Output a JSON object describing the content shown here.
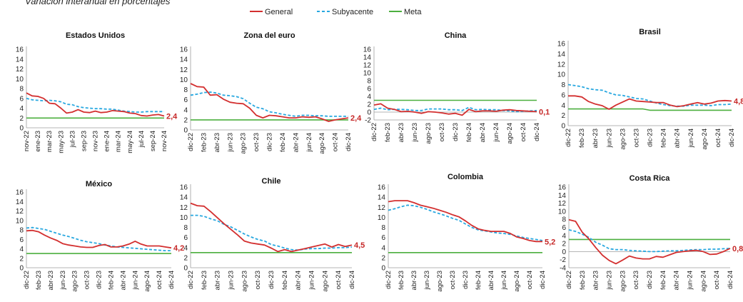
{
  "subtitle": "Variación interanual en porcentajes",
  "legend": [
    {
      "name": "General",
      "color": "#d32f2f",
      "style": "solid"
    },
    {
      "name": "Subyacente",
      "color": "#29a8e0",
      "style": "dashed"
    },
    {
      "name": "Meta",
      "color": "#4caf3f",
      "style": "solid"
    }
  ],
  "chart_data": [
    {
      "type": "line",
      "title": "Estados Unidos",
      "ylim": [
        0,
        16
      ],
      "yticks": [
        0,
        2,
        4,
        6,
        8,
        10,
        12,
        14,
        16
      ],
      "x_labels": [
        "nov-22",
        "ene-23",
        "mar-23",
        "may-23",
        "jul-23",
        "sep-23",
        "nov-23",
        "ene-24",
        "mar-24",
        "may-24",
        "jul-24",
        "sep-24",
        "nov-24"
      ],
      "series": [
        {
          "name": "General",
          "values": [
            7.1,
            6.5,
            6.4,
            6.0,
            5.0,
            4.9,
            4.0,
            3.0,
            3.2,
            3.7,
            3.2,
            3.1,
            3.4,
            3.1,
            3.2,
            3.5,
            3.4,
            3.3,
            3.0,
            2.9,
            2.5,
            2.4,
            2.6,
            2.7,
            2.4
          ]
        },
        {
          "name": "Subyacente",
          "values": [
            6.0,
            5.7,
            5.6,
            5.5,
            5.6,
            5.5,
            5.3,
            4.8,
            4.7,
            4.3,
            4.1,
            4.0,
            3.9,
            3.9,
            3.8,
            3.8,
            3.6,
            3.4,
            3.3,
            3.2,
            3.2,
            3.3,
            3.3,
            3.3,
            3.3
          ]
        },
        {
          "name": "Meta",
          "values": [
            2,
            2,
            2,
            2,
            2,
            2,
            2,
            2,
            2,
            2,
            2,
            2,
            2,
            2,
            2,
            2,
            2,
            2,
            2,
            2,
            2,
            2,
            2,
            2,
            2
          ]
        }
      ],
      "end_label": "2,4"
    },
    {
      "type": "line",
      "title": "Zona del euro",
      "ylim": [
        0,
        16
      ],
      "yticks": [
        0,
        2,
        4,
        6,
        8,
        10,
        12,
        14,
        16
      ],
      "x_labels": [
        "dic-22",
        "feb-23",
        "abr-23",
        "jun-23",
        "ago-23",
        "oct-23",
        "dic-23",
        "feb-24",
        "abr-24",
        "jun-24",
        "ago-24",
        "oct-24",
        "dic-24"
      ],
      "series": [
        {
          "name": "General",
          "values": [
            9.2,
            8.6,
            8.5,
            6.9,
            7.0,
            6.1,
            5.5,
            5.3,
            5.2,
            4.3,
            2.9,
            2.4,
            2.9,
            2.8,
            2.6,
            2.4,
            2.4,
            2.6,
            2.5,
            2.6,
            2.2,
            1.7,
            2.0,
            2.2,
            2.4
          ]
        },
        {
          "name": "Subyacente",
          "values": [
            6.9,
            7.1,
            7.4,
            7.5,
            7.3,
            6.9,
            6.8,
            6.6,
            6.2,
            5.3,
            4.5,
            4.2,
            3.6,
            3.4,
            3.1,
            2.9,
            2.7,
            2.9,
            2.9,
            2.8,
            2.8,
            2.7,
            2.7,
            2.7,
            2.7
          ]
        },
        {
          "name": "Meta",
          "values": [
            2,
            2,
            2,
            2,
            2,
            2,
            2,
            2,
            2,
            2,
            2,
            2,
            2,
            2,
            2,
            2,
            2,
            2,
            2,
            2,
            2,
            2,
            2,
            2,
            2
          ]
        }
      ],
      "end_label": "2,4"
    },
    {
      "type": "line",
      "title": "China",
      "ylim": [
        -2,
        16
      ],
      "yticks": [
        -2,
        0,
        2,
        4,
        6,
        8,
        10,
        12,
        14,
        16
      ],
      "x_labels": [
        "dic-22",
        "feb-23",
        "abr-23",
        "jun-23",
        "ago-23",
        "oct-23",
        "dic-23",
        "feb-24",
        "abr-24",
        "jun-24",
        "ago-24",
        "oct-24",
        "dic-24"
      ],
      "series": [
        {
          "name": "General",
          "values": [
            1.8,
            2.1,
            1.0,
            0.7,
            0.1,
            0.2,
            0.0,
            -0.3,
            0.1,
            0.0,
            -0.2,
            -0.5,
            -0.3,
            -0.8,
            0.7,
            0.1,
            0.3,
            0.3,
            0.2,
            0.5,
            0.6,
            0.4,
            0.3,
            0.2,
            0.1
          ]
        },
        {
          "name": "Subyacente",
          "values": [
            0.7,
            1.0,
            0.6,
            0.7,
            0.7,
            0.6,
            0.4,
            0.4,
            0.8,
            0.8,
            0.8,
            0.6,
            0.6,
            0.4,
            1.2,
            0.6,
            0.7,
            0.6,
            0.6,
            0.4,
            0.3,
            0.1,
            0.2,
            0.3,
            0.4
          ]
        },
        {
          "name": "Meta",
          "values": [
            3,
            3,
            3,
            3,
            3,
            3,
            3,
            3,
            3,
            3,
            3,
            3,
            3,
            3,
            3,
            3,
            3,
            3,
            3,
            3,
            3,
            3,
            3,
            3,
            3
          ]
        }
      ],
      "end_label": "0,1"
    },
    {
      "type": "line",
      "title": "Brasil",
      "ylim": [
        0,
        16
      ],
      "yticks": [
        0,
        2,
        4,
        6,
        8,
        10,
        12,
        14,
        16
      ],
      "x_labels": [
        "dic-22",
        "feb-23",
        "abr-23",
        "jun-23",
        "ago-23",
        "oct-23",
        "dic-23",
        "feb-24",
        "abr-24",
        "jun-24",
        "ago-24",
        "oct-24",
        "dic-24"
      ],
      "series": [
        {
          "name": "General",
          "values": [
            5.8,
            5.8,
            5.6,
            4.7,
            4.2,
            3.9,
            3.2,
            4.0,
            4.6,
            5.2,
            4.8,
            4.7,
            4.6,
            4.5,
            4.5,
            4.0,
            3.7,
            3.9,
            4.2,
            4.5,
            4.2,
            4.4,
            4.8,
            4.9,
            4.8
          ]
        },
        {
          "name": "Subyacente",
          "values": [
            8.0,
            7.8,
            7.6,
            7.2,
            7.0,
            6.9,
            6.4,
            6.0,
            5.9,
            5.6,
            5.3,
            5.2,
            4.8,
            4.4,
            4.1,
            3.9,
            3.8,
            3.8,
            4.0,
            4.0,
            4.0,
            3.9,
            4.1,
            4.1,
            4.2
          ]
        },
        {
          "name": "Meta",
          "values": [
            3.25,
            3.25,
            3.25,
            3.25,
            3.25,
            3.25,
            3.25,
            3.25,
            3.25,
            3.25,
            3.25,
            3.25,
            3.0,
            3.0,
            3.0,
            3.0,
            3.0,
            3.0,
            3.0,
            3.0,
            3.0,
            3.0,
            3.0,
            3.0,
            3.0
          ]
        }
      ],
      "end_label": "4,8"
    },
    {
      "type": "line",
      "title": "México",
      "ylim": [
        0,
        16
      ],
      "yticks": [
        0,
        2,
        4,
        6,
        8,
        10,
        12,
        14,
        16
      ],
      "x_labels": [
        "dic-22",
        "feb-23",
        "abr-23",
        "jun-23",
        "ago-23",
        "oct-23",
        "dic-23",
        "feb-24",
        "abr-24",
        "jun-24",
        "ago-24",
        "oct-24",
        "dic-24"
      ],
      "series": [
        {
          "name": "General",
          "values": [
            7.8,
            7.9,
            7.6,
            6.9,
            6.3,
            5.8,
            5.1,
            4.8,
            4.6,
            4.4,
            4.3,
            4.3,
            4.7,
            4.9,
            4.4,
            4.4,
            4.6,
            5.0,
            5.6,
            5.0,
            4.6,
            4.6,
            4.6,
            4.4,
            4.2
          ]
        },
        {
          "name": "Subyacente",
          "values": [
            8.4,
            8.5,
            8.3,
            8.1,
            7.7,
            7.3,
            6.9,
            6.6,
            6.2,
            5.8,
            5.5,
            5.3,
            5.1,
            4.8,
            4.6,
            4.4,
            4.3,
            4.2,
            4.1,
            4.0,
            3.9,
            3.8,
            3.7,
            3.6,
            3.6
          ]
        },
        {
          "name": "Meta",
          "values": [
            3,
            3,
            3,
            3,
            3,
            3,
            3,
            3,
            3,
            3,
            3,
            3,
            3,
            3,
            3,
            3,
            3,
            3,
            3,
            3,
            3,
            3,
            3,
            3,
            3
          ]
        }
      ],
      "end_label": "4,2"
    },
    {
      "type": "line",
      "title": "Chile",
      "ylim": [
        0,
        16
      ],
      "yticks": [
        0,
        2,
        4,
        6,
        8,
        10,
        12,
        14,
        16
      ],
      "x_labels": [
        "dic-22",
        "feb-23",
        "abr-23",
        "jun-23",
        "ago-23",
        "oct-23",
        "dic-23",
        "feb-24",
        "abr-24",
        "jun-24",
        "ago-24",
        "oct-24",
        "dic-24"
      ],
      "series": [
        {
          "name": "General",
          "values": [
            12.8,
            12.3,
            12.2,
            11.1,
            9.9,
            8.7,
            7.6,
            6.5,
            5.3,
            4.9,
            4.7,
            4.5,
            3.9,
            3.2,
            3.6,
            3.2,
            3.5,
            3.8,
            4.1,
            4.4,
            4.7,
            4.1,
            4.6,
            4.2,
            4.5
          ]
        },
        {
          "name": "Subyacente",
          "values": [
            10.4,
            10.4,
            10.2,
            9.7,
            9.3,
            8.6,
            8.1,
            7.4,
            6.7,
            6.1,
            5.6,
            5.3,
            4.6,
            4.3,
            3.9,
            3.6,
            3.5,
            3.7,
            3.8,
            3.8,
            3.9,
            3.9,
            4.0,
            4.0,
            4.1
          ]
        },
        {
          "name": "Meta",
          "values": [
            3,
            3,
            3,
            3,
            3,
            3,
            3,
            3,
            3,
            3,
            3,
            3,
            3,
            3,
            3,
            3,
            3,
            3,
            3,
            3,
            3,
            3,
            3,
            3,
            3
          ]
        }
      ],
      "end_label": "4,5"
    },
    {
      "type": "line",
      "title": "Colombia",
      "ylim": [
        0,
        16
      ],
      "yticks": [
        0,
        2,
        4,
        6,
        8,
        10,
        12,
        14,
        16
      ],
      "x_labels": [
        "dic-22",
        "feb-23",
        "abr-23",
        "jun-23",
        "ago-23",
        "oct-23",
        "dic-23",
        "feb-24",
        "abr-24",
        "jun-24",
        "ago-24",
        "oct-24",
        "dic-24"
      ],
      "series": [
        {
          "name": "General",
          "values": [
            13.1,
            13.3,
            13.3,
            13.3,
            12.9,
            12.4,
            12.1,
            11.8,
            11.4,
            11.0,
            10.5,
            10.1,
            9.3,
            8.4,
            7.7,
            7.4,
            7.2,
            7.2,
            7.2,
            6.8,
            6.1,
            5.8,
            5.4,
            5.2,
            5.2
          ]
        },
        {
          "name": "Subyacente",
          "values": [
            11.4,
            11.7,
            12.1,
            12.4,
            12.3,
            12.0,
            11.6,
            11.1,
            10.7,
            10.3,
            9.8,
            9.4,
            8.7,
            8.0,
            7.5,
            7.3,
            7.1,
            6.9,
            6.8,
            6.6,
            6.3,
            6.0,
            5.8,
            5.6,
            5.4
          ]
        },
        {
          "name": "Meta",
          "values": [
            3,
            3,
            3,
            3,
            3,
            3,
            3,
            3,
            3,
            3,
            3,
            3,
            3,
            3,
            3,
            3,
            3,
            3,
            3,
            3,
            3,
            3,
            3,
            3,
            3
          ]
        }
      ],
      "end_label": "5,2"
    },
    {
      "type": "line",
      "title": "Costa Rica",
      "ylim": [
        -4,
        16
      ],
      "yticks": [
        -4,
        -2,
        0,
        2,
        4,
        6,
        8,
        10,
        12,
        14,
        16
      ],
      "x_labels": [
        "dic-22",
        "feb-23",
        "abr-23",
        "jun-23",
        "ago-23",
        "oct-23",
        "dic-23",
        "feb-24",
        "abr-24",
        "jun-24",
        "ago-24",
        "oct-24",
        "dic-24"
      ],
      "series": [
        {
          "name": "General",
          "values": [
            7.9,
            7.5,
            4.8,
            3.1,
            1.0,
            -0.9,
            -2.2,
            -3.0,
            -2.1,
            -1.1,
            -1.6,
            -1.8,
            -1.8,
            -1.2,
            -1.4,
            -0.8,
            -0.2,
            0.0,
            0.2,
            0.3,
            0.0,
            -0.7,
            -0.6,
            0.0,
            0.8
          ]
        },
        {
          "name": "Subyacente",
          "values": [
            5.4,
            5.0,
            4.3,
            3.5,
            2.3,
            1.6,
            0.7,
            0.5,
            0.5,
            0.3,
            0.2,
            0.1,
            0.0,
            0.0,
            0.1,
            0.2,
            0.2,
            0.3,
            0.4,
            0.5,
            0.5,
            0.6,
            0.6,
            0.7,
            0.8
          ]
        },
        {
          "name": "Meta",
          "values": [
            3,
            3,
            3,
            3,
            3,
            3,
            3,
            3,
            3,
            3,
            3,
            3,
            3,
            3,
            3,
            3,
            3,
            3,
            3,
            3,
            3,
            3,
            3,
            3,
            3
          ]
        }
      ],
      "end_label": "0,8"
    }
  ]
}
